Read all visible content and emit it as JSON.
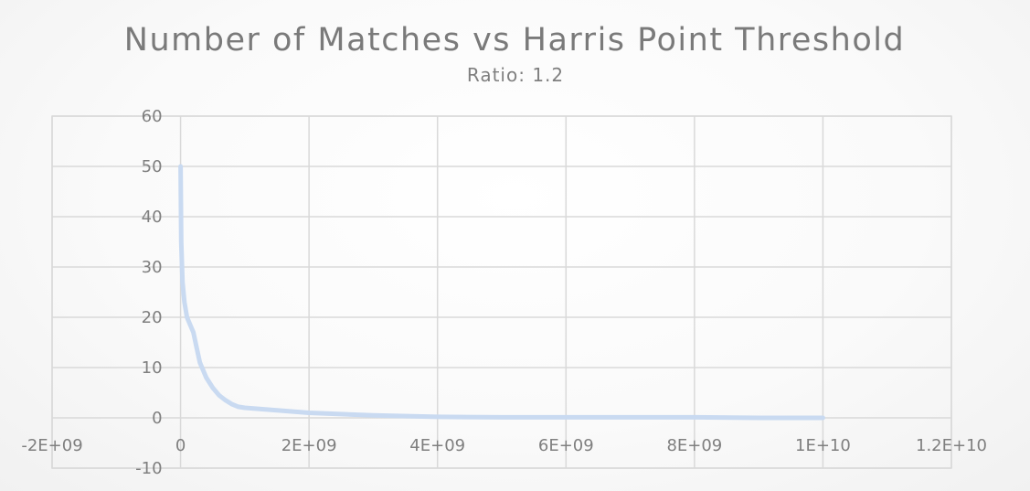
{
  "chart_data": {
    "type": "scatter",
    "title": "Number of Matches vs Harris Point Threshold",
    "subtitle": "Ratio: 1.2",
    "xlabel": "",
    "ylabel": "",
    "xlim": [
      -2000000000,
      12000000000
    ],
    "ylim": [
      -10,
      60
    ],
    "x_ticks": [
      -2000000000,
      0,
      2000000000,
      4000000000,
      6000000000,
      8000000000,
      10000000000,
      12000000000
    ],
    "x_tick_labels": [
      "-2E+09",
      "0",
      "2E+09",
      "4E+09",
      "6E+09",
      "8E+09",
      "1E+10",
      "1.2E+10"
    ],
    "y_ticks": [
      -10,
      0,
      10,
      20,
      30,
      40,
      50,
      60
    ],
    "y_tick_labels": [
      "-10",
      "0",
      "10",
      "20",
      "30",
      "40",
      "50",
      "60"
    ],
    "grid": true,
    "legend": "none",
    "series": [
      {
        "color": "#c9daf1",
        "x": [
          0,
          10000000,
          30000000,
          60000000,
          100000000,
          150000000,
          200000000,
          250000000,
          300000000,
          400000000,
          500000000,
          600000000,
          700000000,
          800000000,
          900000000,
          1000000000,
          1500000000,
          2000000000,
          3000000000,
          4000000000,
          5000000000,
          6000000000,
          7000000000,
          8000000000,
          9000000000,
          10000000000
        ],
        "y": [
          50,
          35,
          27,
          23,
          20,
          18.5,
          17,
          14,
          11,
          8,
          6,
          4.5,
          3.5,
          2.7,
          2.2,
          2,
          1.5,
          1,
          0.5,
          0.2,
          0.1,
          0.1,
          0.1,
          0.1,
          0,
          0
        ]
      }
    ]
  }
}
